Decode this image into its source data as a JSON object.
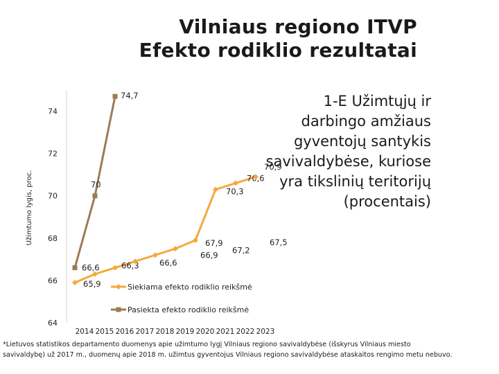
{
  "header": {
    "title_line1": "Vilniaus regiono ITVP",
    "title_line2": "Efekto rodiklio rezultatai"
  },
  "side_text": "1-E Užimtųjų ir darbingo amžiaus gyventojų santykis savivaldybėse, kuriose yra tikslinių teritorijų (procentais)",
  "footnote": "*Lietuvos statistikos departamento duomenys apie užimtumo lygį Vilniaus regiono savivaldybėse (išskyrus Vilniaus miesto savivaldybę) už 2017 m., duomenų apie 2018 m. užimtus gyventojus Vilniaus regiono savivaldybėse ataskaitos rengimo metu nebuvo.",
  "chart_data": {
    "type": "line",
    "categories": [
      "2014",
      "2015",
      "2016",
      "2017",
      "2018",
      "2019",
      "2020",
      "2021",
      "2022",
      "2023"
    ],
    "ylabel": "Užimtumo lygis, proc.",
    "xlabel": "",
    "ylim": [
      64,
      75
    ],
    "yticks": [
      64,
      66,
      68,
      70,
      72,
      74
    ],
    "grid": false,
    "series": [
      {
        "name": "Siekiama efekto rodiklio reikšmė",
        "color": "#f5a93a",
        "marker": "diamond",
        "values": [
          65.9,
          66.3,
          66.6,
          66.9,
          67.2,
          67.5,
          67.9,
          70.3,
          70.6,
          70.9
        ],
        "labels": [
          "65,9",
          "66,3",
          "66,6",
          "66,9",
          "67,2",
          "67,5",
          "67,9",
          "70,3",
          "70,6",
          "70,9"
        ]
      },
      {
        "name": "Pasiekta efekto rodiklio reikšmė",
        "color": "#9b7c55",
        "marker": "square",
        "values": [
          66.6,
          70,
          74.7,
          null,
          null,
          null,
          null,
          null,
          null,
          null
        ],
        "labels": [
          "66,6",
          "70",
          "74,7",
          null,
          null,
          null,
          null,
          null,
          null,
          null
        ]
      }
    ]
  }
}
